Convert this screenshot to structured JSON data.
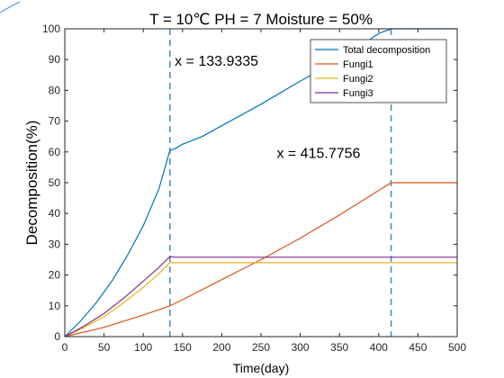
{
  "chart_data": {
    "type": "line",
    "title": "T = 10℃ PH = 7 Moisture = 50%",
    "xlabel": "Time(day)",
    "ylabel": "Decomposition(%)",
    "xlim": [
      0,
      500
    ],
    "ylim": [
      0,
      100
    ],
    "xticks": [
      0,
      50,
      100,
      150,
      200,
      250,
      300,
      350,
      400,
      450,
      500
    ],
    "yticks": [
      0,
      10,
      20,
      30,
      40,
      50,
      60,
      70,
      80,
      90,
      100
    ],
    "xtick_labels": [
      "0",
      "50",
      "100",
      "150",
      "200",
      "250",
      "300",
      "350",
      "400",
      "450",
      "500"
    ],
    "ytick_labels": [
      "0",
      "10",
      "20",
      "30",
      "40",
      "50",
      "60",
      "70",
      "80",
      "90",
      "100"
    ],
    "grid": false,
    "legend_position": "top-right",
    "series": [
      {
        "name": "Total decomposition",
        "color": "#0072BD",
        "x": [
          0,
          20,
          40,
          60,
          80,
          100,
          120,
          133.9,
          140,
          150,
          175,
          200,
          250,
          300,
          350,
          380,
          400,
          415.8,
          450,
          500
        ],
        "y": [
          0,
          5,
          11,
          18,
          26.5,
          36,
          48,
          60.5,
          61,
          62.5,
          65,
          68.5,
          75.5,
          83,
          90,
          95,
          98.5,
          100,
          100,
          100
        ]
      },
      {
        "name": "Fungi1",
        "color": "#D95319",
        "x": [
          0,
          50,
          100,
          133.9,
          150,
          200,
          250,
          300,
          350,
          400,
          415.8,
          450,
          500
        ],
        "y": [
          0,
          3,
          7,
          10,
          12,
          18.5,
          25,
          32,
          39.5,
          47.5,
          50,
          50,
          50
        ]
      },
      {
        "name": "Fungi2",
        "color": "#EDB120",
        "x": [
          0,
          25,
          50,
          75,
          100,
          120,
          133.9,
          140,
          200,
          300,
          400,
          500
        ],
        "y": [
          0,
          3,
          6.5,
          11,
          16,
          20.5,
          24,
          24,
          24,
          24,
          24,
          24
        ]
      },
      {
        "name": "Fungi3",
        "color": "#7E2F8E",
        "x": [
          0,
          25,
          50,
          75,
          100,
          120,
          133.9,
          140,
          200,
          300,
          400,
          500
        ],
        "y": [
          0,
          3.5,
          7.5,
          12.5,
          18,
          22.5,
          26,
          25.8,
          25.8,
          25.8,
          25.8,
          25.8
        ]
      }
    ],
    "vlines": [
      {
        "x": 133.9335,
        "color": "#4A90C6"
      },
      {
        "x": 415.7756,
        "color": "#4A90C6"
      }
    ],
    "annotations": [
      {
        "text": "x = 133.9335",
        "x": 140,
        "y": 88
      },
      {
        "text": "x = 415.7756",
        "x": 270,
        "y": 58
      }
    ]
  }
}
